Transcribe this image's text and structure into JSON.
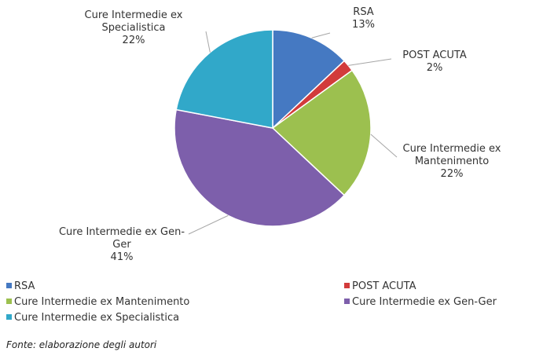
{
  "chart_data": {
    "type": "pie",
    "categories": [
      "RSA",
      "POST ACUTA",
      "Cure Intermedie ex Mantenimento",
      "Cure Intermedie ex Gen-Ger",
      "Cure Intermedie ex Specialistica"
    ],
    "values": [
      13,
      2,
      22,
      41,
      22
    ],
    "value_labels": [
      "13%",
      "2%",
      "22%",
      "41%",
      "22%"
    ],
    "colors": [
      "#4579c2",
      "#d23b3b",
      "#9cc04f",
      "#7d5fab",
      "#31a8c9"
    ],
    "legend": "bottom"
  },
  "source": "Fonte: elaborazione degli autori"
}
